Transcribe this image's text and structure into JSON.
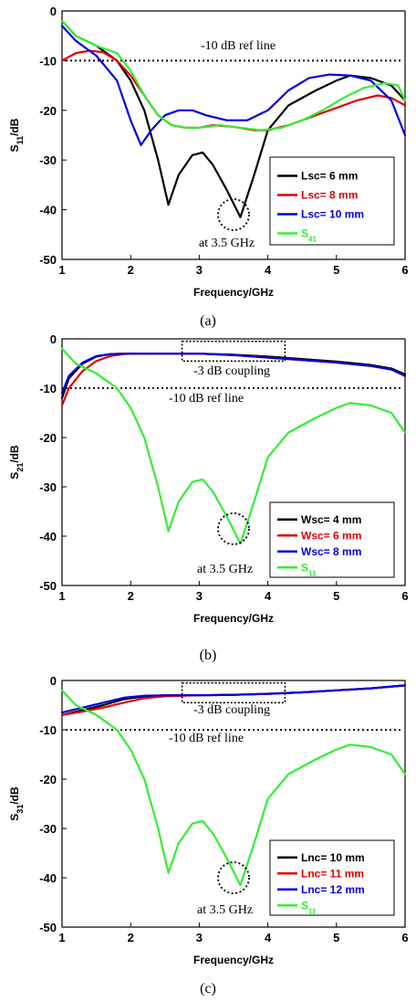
{
  "chart_data": [
    {
      "type": "line",
      "panel": "(a)",
      "ylabel_main": "S",
      "ylabel_sub": "11",
      "ylabel_unit": "/dB",
      "xlabel": "Frequency/GHz",
      "caption": "(a)",
      "xlim": [
        1,
        6
      ],
      "ylim": [
        -50,
        0
      ],
      "xticks": [
        "1",
        "2",
        "3",
        "4",
        "5",
        "6"
      ],
      "yticks": [
        "0",
        "-10",
        "-20",
        "-30",
        "-40",
        "-50"
      ],
      "grid": false,
      "legend_position": "center-right",
      "ref_line": {
        "y": -10,
        "label": "-10 dB ref line"
      },
      "annotations": [
        "at 3.5 GHz"
      ],
      "circle_marker": {
        "x": 3.5,
        "y": -41
      },
      "series": [
        {
          "name": "Lsc= 6 mm",
          "color": "#000000",
          "x": [
            1,
            1.2,
            1.5,
            1.8,
            2.0,
            2.2,
            2.4,
            2.55,
            2.7,
            2.9,
            3.05,
            3.2,
            3.4,
            3.6,
            3.8,
            4.0,
            4.3,
            4.7,
            5.0,
            5.2,
            5.5,
            5.8,
            6.0
          ],
          "y": [
            -2,
            -5,
            -7,
            -10,
            -14,
            -20,
            -30,
            -39,
            -33,
            -29,
            -28.5,
            -31,
            -36,
            -41.5,
            -33,
            -24,
            -19,
            -16,
            -14,
            -13,
            -13.5,
            -15,
            -18
          ]
        },
        {
          "name": "Lsc= 8 mm",
          "color": "#e00000",
          "x": [
            1,
            1.2,
            1.4,
            1.6,
            1.8,
            2.0,
            2.2,
            2.4,
            2.6,
            2.8,
            3.0,
            3.2,
            3.5,
            3.8,
            4.0,
            4.3,
            4.7,
            5.0,
            5.3,
            5.6,
            5.8,
            6.0
          ],
          "y": [
            -10,
            -8.5,
            -8,
            -8.3,
            -10,
            -13,
            -17,
            -21,
            -23,
            -23.5,
            -23.5,
            -23,
            -23.3,
            -24,
            -24,
            -23,
            -21,
            -19.5,
            -18,
            -17,
            -17.5,
            -19
          ]
        },
        {
          "name": "Lsc= 10 mm",
          "color": "#0000dd",
          "x": [
            1,
            1.2,
            1.5,
            1.8,
            2.0,
            2.15,
            2.3,
            2.5,
            2.7,
            2.9,
            3.1,
            3.4,
            3.7,
            4.0,
            4.3,
            4.6,
            4.9,
            5.2,
            5.5,
            5.8,
            6.0
          ],
          "y": [
            -3,
            -6,
            -9,
            -14,
            -22,
            -27,
            -24,
            -21,
            -20,
            -20,
            -21,
            -22,
            -22,
            -20,
            -16,
            -13.5,
            -12.8,
            -13,
            -14,
            -18,
            -25
          ]
        },
        {
          "name": "S41",
          "color": "#33ee33",
          "x": [
            1,
            1.2,
            1.5,
            1.8,
            2.0,
            2.2,
            2.4,
            2.6,
            2.8,
            3.0,
            3.3,
            3.6,
            3.9,
            4.2,
            4.5,
            4.8,
            5.1,
            5.4,
            5.7,
            5.9,
            6.0
          ],
          "y": [
            -2,
            -5,
            -7,
            -8.5,
            -12,
            -17,
            -21,
            -23,
            -23.5,
            -23.5,
            -23,
            -23.5,
            -24,
            -23.5,
            -22,
            -20,
            -17.5,
            -15.5,
            -14.5,
            -15,
            -18
          ]
        }
      ],
      "legend": [
        {
          "label_main": "Lsc= 6 mm",
          "label_sub": "",
          "color": "#000000"
        },
        {
          "label_main": "Lsc= 8 mm",
          "label_sub": "",
          "color": "#e00000"
        },
        {
          "label_main": "Lsc= 10 mm",
          "label_sub": "",
          "color": "#0000dd"
        },
        {
          "label_main": "S",
          "label_sub": "41",
          "color": "#33ee33"
        }
      ]
    },
    {
      "type": "line",
      "panel": "(b)",
      "ylabel_main": "S",
      "ylabel_sub": "21",
      "ylabel_unit": "/dB",
      "xlabel": "Frequency/GHz",
      "caption": "(b)",
      "xlim": [
        1,
        6
      ],
      "ylim": [
        -50,
        0
      ],
      "xticks": [
        "1",
        "2",
        "3",
        "4",
        "5",
        "6"
      ],
      "yticks": [
        "0",
        "-10",
        "-20",
        "-30",
        "-40",
        "-50"
      ],
      "grid": false,
      "legend_position": "bottom-right",
      "ref_line": {
        "y": -10,
        "label": "-10 dB ref line"
      },
      "annotations": [
        "-3 dB coupling",
        "at 3.5 GHz"
      ],
      "circle_marker": {
        "x": 3.5,
        "y": -38.5
      },
      "coupling_box": {
        "x0": 2.75,
        "x1": 4.25,
        "y0": -0.5,
        "y1": -4.5
      },
      "series": [
        {
          "name": "Wsc= 4 mm",
          "color": "#000000",
          "x": [
            1,
            1.1,
            1.3,
            1.5,
            1.7,
            1.9,
            2.1,
            2.5,
            3.0,
            3.5,
            4.0,
            4.5,
            5.0,
            5.5,
            5.8,
            6.0
          ],
          "y": [
            -12,
            -8,
            -5,
            -3.6,
            -3.1,
            -3,
            -3,
            -3,
            -3,
            -3.2,
            -3.6,
            -4.1,
            -4.6,
            -5.3,
            -6,
            -7.2
          ]
        },
        {
          "name": "Wsc= 6 mm",
          "color": "#e00000",
          "x": [
            1,
            1.1,
            1.3,
            1.5,
            1.7,
            1.9,
            2.1,
            2.5,
            3.0,
            3.5,
            4.0,
            4.5,
            5.0,
            5.5,
            5.8,
            6.0
          ],
          "y": [
            -13.5,
            -10,
            -6.5,
            -4.5,
            -3.5,
            -3.1,
            -3,
            -3,
            -3,
            -3.3,
            -3.8,
            -4.3,
            -4.8,
            -5.5,
            -6.2,
            -7.5
          ]
        },
        {
          "name": "Wsc= 8 mm",
          "color": "#0000dd",
          "x": [
            1,
            1.1,
            1.3,
            1.5,
            1.7,
            1.9,
            2.1,
            2.5,
            3.0,
            3.5,
            4.0,
            4.5,
            5.0,
            5.5,
            5.8,
            6.0
          ],
          "y": [
            -11,
            -7.5,
            -4.8,
            -3.5,
            -3.1,
            -3,
            -3,
            -3,
            -3,
            -3.3,
            -3.8,
            -4.3,
            -4.8,
            -5.5,
            -6.2,
            -7.5
          ]
        },
        {
          "name": "S11",
          "color": "#33ee33",
          "x": [
            1,
            1.2,
            1.5,
            1.8,
            2.0,
            2.2,
            2.4,
            2.55,
            2.7,
            2.9,
            3.05,
            3.2,
            3.4,
            3.6,
            3.8,
            4.0,
            4.3,
            4.7,
            5.0,
            5.2,
            5.5,
            5.8,
            6.0
          ],
          "y": [
            -2,
            -5,
            -7,
            -10,
            -14,
            -20,
            -30,
            -39,
            -33,
            -29,
            -28.5,
            -31,
            -36,
            -41.5,
            -33,
            -24,
            -19,
            -16,
            -14,
            -13,
            -13.5,
            -15,
            -19
          ]
        }
      ],
      "legend": [
        {
          "label_main": "Wsc= 4 mm",
          "label_sub": "",
          "color": "#000000"
        },
        {
          "label_main": "Wsc= 6 mm",
          "label_sub": "",
          "color": "#e00000"
        },
        {
          "label_main": "Wsc= 8 mm",
          "label_sub": "",
          "color": "#0000dd"
        },
        {
          "label_main": "S",
          "label_sub": "11",
          "color": "#33ee33"
        }
      ]
    },
    {
      "type": "line",
      "panel": "(c)",
      "ylabel_main": "S",
      "ylabel_sub": "31",
      "ylabel_unit": "/dB",
      "xlabel": "Frequency/GHz",
      "caption": "(c)",
      "xlim": [
        1,
        6
      ],
      "ylim": [
        -50,
        0
      ],
      "xticks": [
        "1",
        "2",
        "3",
        "4",
        "5",
        "6"
      ],
      "yticks": [
        "0",
        "-10",
        "-20",
        "-30",
        "-40",
        "-50"
      ],
      "grid": false,
      "legend_position": "bottom-right",
      "ref_line": {
        "y": -10,
        "label": "-10 dB ref line"
      },
      "annotations": [
        "-3 dB coupling",
        "at 3.5 GHz"
      ],
      "circle_marker": {
        "x": 3.5,
        "y": -40
      },
      "coupling_box": {
        "x0": 2.75,
        "x1": 4.25,
        "y0": -0.5,
        "y1": -4.5
      },
      "series": [
        {
          "name": "Lnc= 10 mm",
          "color": "#000000",
          "x": [
            1,
            1.3,
            1.6,
            1.9,
            2.2,
            2.5,
            3.0,
            3.5,
            4.0,
            4.5,
            5.0,
            5.5,
            6.0
          ],
          "y": [
            -7,
            -6,
            -5,
            -3.8,
            -3.2,
            -3,
            -3,
            -2.9,
            -2.7,
            -2.4,
            -2,
            -1.6,
            -1
          ]
        },
        {
          "name": "Lnc= 11 mm",
          "color": "#e00000",
          "x": [
            1,
            1.3,
            1.6,
            1.9,
            2.2,
            2.5,
            3.0,
            3.5,
            4.0,
            4.5,
            5.0,
            5.5,
            6.0
          ],
          "y": [
            -7,
            -6.3,
            -5.5,
            -4.5,
            -3.6,
            -3.2,
            -3,
            -2.9,
            -2.7,
            -2.4,
            -2,
            -1.6,
            -1
          ]
        },
        {
          "name": "Lnc= 12 mm",
          "color": "#0000dd",
          "x": [
            1,
            1.3,
            1.6,
            1.9,
            2.2,
            2.5,
            3.0,
            3.5,
            4.0,
            4.5,
            5.0,
            5.5,
            6.0
          ],
          "y": [
            -6.5,
            -5.5,
            -4.5,
            -3.5,
            -3.1,
            -3,
            -3,
            -2.9,
            -2.7,
            -2.4,
            -2,
            -1.6,
            -1
          ]
        },
        {
          "name": "S11",
          "color": "#33ee33",
          "x": [
            1,
            1.2,
            1.5,
            1.8,
            2.0,
            2.2,
            2.4,
            2.55,
            2.7,
            2.9,
            3.05,
            3.2,
            3.4,
            3.6,
            3.8,
            4.0,
            4.3,
            4.7,
            5.0,
            5.2,
            5.5,
            5.8,
            6.0
          ],
          "y": [
            -2,
            -5,
            -7,
            -10,
            -14,
            -20,
            -30,
            -39,
            -33,
            -29,
            -28.5,
            -31,
            -36,
            -41.5,
            -33,
            -24,
            -19,
            -16,
            -14,
            -13,
            -13.5,
            -15,
            -19
          ]
        }
      ],
      "legend": [
        {
          "label_main": "Lnc= 10 mm",
          "label_sub": "",
          "color": "#000000"
        },
        {
          "label_main": "Lnc= 11 mm",
          "label_sub": "",
          "color": "#e00000"
        },
        {
          "label_main": "Lnc= 12 mm",
          "label_sub": "",
          "color": "#0000dd"
        },
        {
          "label_main": "S",
          "label_sub": "11",
          "color": "#33ee33"
        }
      ]
    }
  ]
}
